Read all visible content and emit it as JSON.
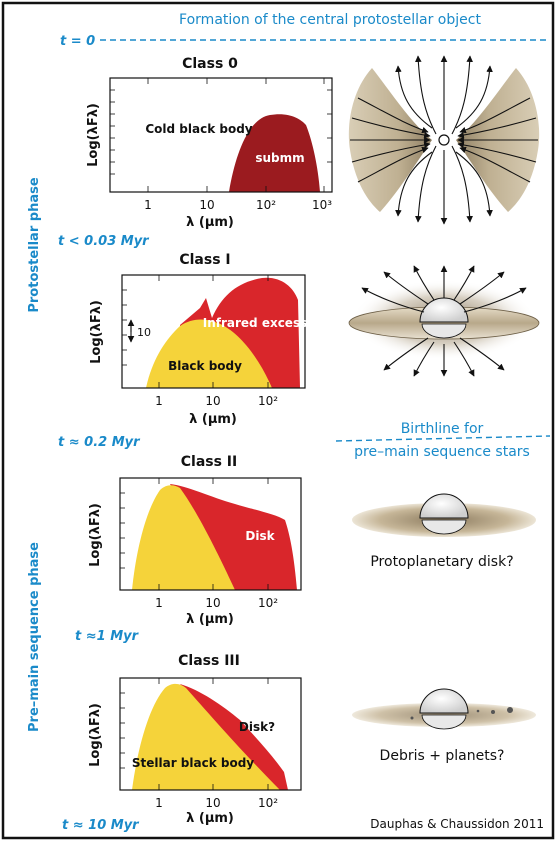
{
  "header": {
    "title": "Formation of the central protostellar object",
    "t0": "t = 0"
  },
  "phases": {
    "protostellar": "Protostellar phase",
    "pre_main_sequence": "Pre–main sequence phase"
  },
  "time_markers": {
    "class0_end": "t < 0.03 Myr",
    "classI_end": "t ≈ 0.2 Myr",
    "classII_end": "t ≈1 Myr",
    "classIII_end": "t ≈ 10 Myr"
  },
  "birthline": {
    "line1": "Birthline for",
    "line2": "pre–main sequence stars"
  },
  "panels": [
    {
      "title": "Class 0",
      "ylabel": "Log(λFλ)",
      "xlabel": "λ (μm)",
      "ticks": [
        "1",
        "10",
        "10²",
        "10³"
      ],
      "labels": [
        "Cold black body",
        "submm"
      ]
    },
    {
      "title": "Class I",
      "ylabel": "Log(λFλ)",
      "xlabel": "λ (μm)",
      "ticks": [
        "1",
        "10",
        "10²"
      ],
      "labels": [
        "Infrared excess",
        "Black body"
      ],
      "scale_bar": "10"
    },
    {
      "title": "Class II",
      "ylabel": "Log(λFλ)",
      "xlabel": "λ (μm)",
      "ticks": [
        "1",
        "10",
        "10²"
      ],
      "labels": [
        "Disk"
      ]
    },
    {
      "title": "Class III",
      "ylabel": "Log(λFλ)",
      "xlabel": "λ (μm)",
      "ticks": [
        "1",
        "10",
        "10²"
      ],
      "labels": [
        "Disk?",
        "Stellar black body"
      ]
    }
  ],
  "illustrations": {
    "classII_caption": "Protoplanetary disk?",
    "classIII_caption": "Debris + planets?"
  },
  "credit": "Dauphas & Chaussidon 2011",
  "colors": {
    "blue_text": "#1a8ac9",
    "dark_red": "#9b1b1f",
    "red": "#d9262b",
    "yellow": "#f5d33a",
    "envelope_tan": "#cfc3aa",
    "disk_tan": "#c9b99c"
  }
}
